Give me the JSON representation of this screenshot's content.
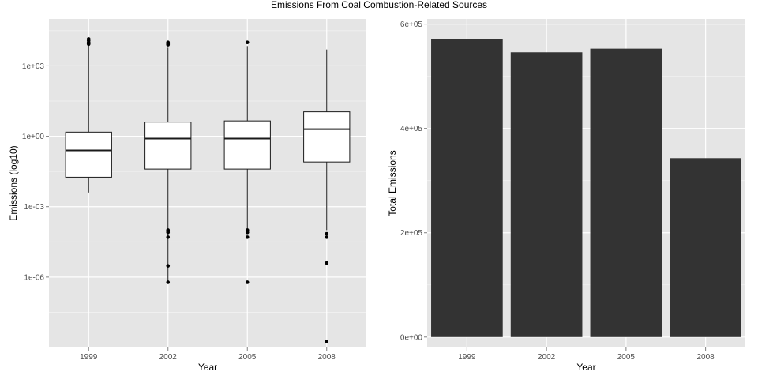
{
  "title": "Emissions From Coal Combustion-Related Sources",
  "colors": {
    "panel_bg": "#e5e5e5",
    "grid_major": "#ffffff",
    "grid_minor": "#f2f2f2",
    "box_fill": "#ffffff",
    "line": "#1a1a1a",
    "bar_fill": "#333333"
  },
  "chart_data": [
    {
      "type": "box",
      "xlabel": "Year",
      "ylabel": "Emissions (log10)",
      "y_scale": "log10",
      "ylim": [
        1e-09,
        100000
      ],
      "grid": true,
      "categories": [
        "1999",
        "2002",
        "2005",
        "2008"
      ],
      "ytick_values": [
        1e-06,
        0.001,
        1,
        1000
      ],
      "ytick_labels": [
        "1e-06",
        "1e-03",
        "1e+00",
        "1e+03"
      ],
      "boxes": [
        {
          "year": "1999",
          "whisker_low": 0.004,
          "q1": 0.018,
          "median": 0.25,
          "q3": 1.5,
          "whisker_high": 8000,
          "outliers": [
            14000,
            12000,
            10000,
            9000,
            8500
          ]
        },
        {
          "year": "2002",
          "whisker_low": 6e-07,
          "q1": 0.04,
          "median": 0.8,
          "q3": 4.0,
          "whisker_high": 6000,
          "outliers": [
            10000,
            9000,
            8000,
            0.0001,
            9e-05,
            8e-05,
            5e-05,
            3e-06,
            6e-07
          ]
        },
        {
          "year": "2005",
          "whisker_low": 0.0001,
          "q1": 0.04,
          "median": 0.8,
          "q3": 4.5,
          "whisker_high": 7000,
          "outliers": [
            10000,
            0.0001,
            8e-05,
            5e-05,
            6e-07
          ]
        },
        {
          "year": "2008",
          "whisker_low": 0.0001,
          "q1": 0.08,
          "median": 2.0,
          "q3": 11.0,
          "whisker_high": 5000,
          "outliers": [
            7e-05,
            5e-05,
            4e-06,
            1.8e-09
          ]
        }
      ]
    },
    {
      "type": "bar",
      "xlabel": "Year",
      "ylabel": "Total Emissions",
      "ylim": [
        0,
        600000
      ],
      "grid": true,
      "categories": [
        "1999",
        "2002",
        "2005",
        "2008"
      ],
      "values": [
        572000,
        546000,
        553000,
        343000
      ],
      "ytick_values": [
        0,
        200000,
        400000,
        600000
      ],
      "ytick_labels": [
        "0e+00",
        "2e+05",
        "4e+05",
        "6e+05"
      ]
    }
  ]
}
